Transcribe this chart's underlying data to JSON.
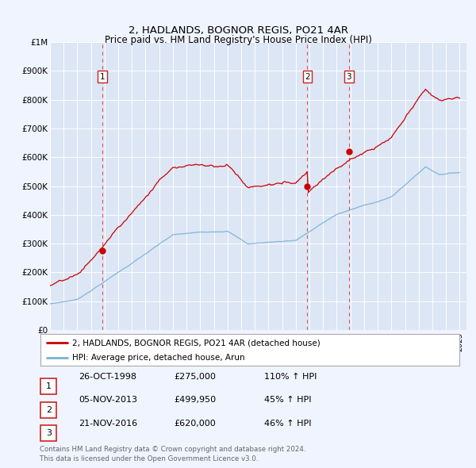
{
  "title": "2, HADLANDS, BOGNOR REGIS, PO21 4AR",
  "subtitle": "Price paid vs. HM Land Registry's House Price Index (HPI)",
  "background_color": "#f0f4ff",
  "plot_bg_color": "#dce6f5",
  "grid_color": "#ffffff",
  "red_line_color": "#cc0000",
  "blue_line_color": "#7aafd4",
  "sale_points": [
    {
      "year": 1998.82,
      "value": 275000,
      "label": "1"
    },
    {
      "year": 2013.85,
      "value": 499950,
      "label": "2"
    },
    {
      "year": 2016.9,
      "value": 620000,
      "label": "3"
    }
  ],
  "vline_years": [
    1998.82,
    2013.85,
    2016.9
  ],
  "xmin": 1995,
  "xmax": 2025.5,
  "ymin": 0,
  "ymax": 1000000,
  "yticks": [
    0,
    100000,
    200000,
    300000,
    400000,
    500000,
    600000,
    700000,
    800000,
    900000,
    1000000
  ],
  "ytick_labels": [
    "£0",
    "£100K",
    "£200K",
    "£300K",
    "£400K",
    "£500K",
    "£600K",
    "£700K",
    "£800K",
    "£900K",
    "£1M"
  ],
  "legend_label_red": "2, HADLANDS, BOGNOR REGIS, PO21 4AR (detached house)",
  "legend_label_blue": "HPI: Average price, detached house, Arun",
  "table_rows": [
    {
      "num": "1",
      "date": "26-OCT-1998",
      "price": "£275,000",
      "hpi": "110% ↑ HPI"
    },
    {
      "num": "2",
      "date": "05-NOV-2013",
      "price": "£499,950",
      "hpi": "45% ↑ HPI"
    },
    {
      "num": "3",
      "date": "21-NOV-2016",
      "price": "£620,000",
      "hpi": "46% ↑ HPI"
    }
  ],
  "footer": "Contains HM Land Registry data © Crown copyright and database right 2024.\nThis data is licensed under the Open Government Licence v3.0."
}
